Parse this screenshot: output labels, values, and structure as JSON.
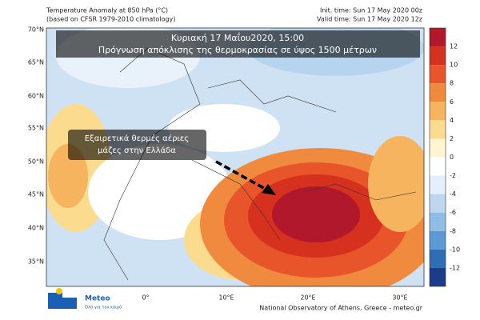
{
  "header": {
    "title": "Temperature Anomaly at 850 hPa (°C)",
    "subtitle": "(based on CFSR 1979-2010 climatology)",
    "init_time": "Init. time: Sun 17 May 2020 00z",
    "valid_time": "Valid time: Sun 17 May 2020 12z"
  },
  "overlay": {
    "date": "Κυριακή 17 Μαΐου2020, 15:00",
    "description": "Πρόγνωση απόκλισης της θερμοκρασίας σε ύψος 1500 μέτρων"
  },
  "annotation": {
    "lines": [
      "Εξαιρετικά θερμές αέριες",
      "μάζες στην Ελλάδα"
    ]
  },
  "map": {
    "lat_labels": [
      "70°N",
      "65°N",
      "60°N",
      "55°N",
      "50°N",
      "45°N",
      "40°N",
      "35°N"
    ],
    "lon_labels": [
      "0°",
      "10°E",
      "20°E",
      "30°E"
    ]
  },
  "colorbar": {
    "ticks": [
      12,
      10,
      8,
      6,
      4,
      2,
      0,
      -2,
      -4,
      -6,
      -8,
      -10,
      -12
    ],
    "colors": [
      "#b2182b",
      "#d6301f",
      "#e8552a",
      "#f08a3e",
      "#f6b45e",
      "#fbdc8e",
      "#fff5cf",
      "#ffffff",
      "#e3effa",
      "#bdd7ee",
      "#8fbde6",
      "#5b9bd5",
      "#2f6db5",
      "#1c3c8a"
    ]
  },
  "logo": {
    "name": "Meteo",
    "tagline": "Όλα για τον καιρό"
  },
  "footer": "National Observatory of Athens, Greece - meteo.gr"
}
